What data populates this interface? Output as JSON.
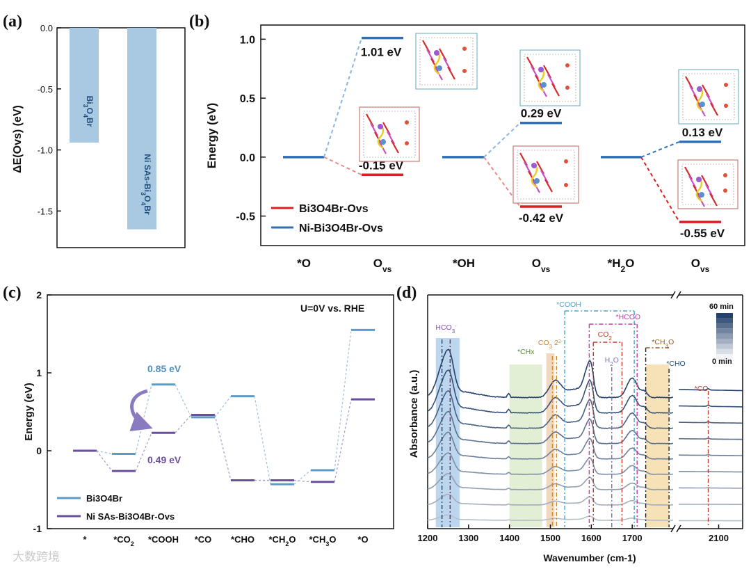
{
  "panels": {
    "a": "(a)",
    "b": "(b)",
    "c": "(c)",
    "d": "(d)"
  },
  "watermark": "大数跨境",
  "colors": {
    "bi": "#d92020",
    "ni": "#2e6fb8",
    "bar": "#a9c8e2",
    "c_bi": "#5b9cc6",
    "c_ni": "#6a4f9c",
    "ir_dark": "#24416b",
    "ir_light": "#b6bec8"
  },
  "chart_data": [
    {
      "id": "a",
      "type": "bar",
      "ylabel": "ΔE(Ovs) (eV)",
      "ylim": [
        -1.8,
        0.0
      ],
      "yticks": [
        0.0,
        -0.5,
        -1.0,
        -1.5
      ],
      "ytick_labels": [
        "0.0",
        "-0.5",
        "-1.0",
        "-1.5"
      ],
      "categories": [
        "Bi3O4Br",
        "Ni SAs-Bi3O4Br"
      ],
      "values": [
        -0.94,
        -1.65
      ]
    },
    {
      "id": "b",
      "type": "line",
      "title": "",
      "ylabel": "Energy (eV)",
      "ylim": [
        -0.75,
        1.12
      ],
      "yticks": [
        -0.5,
        0.0,
        0.5,
        1.0
      ],
      "ytick_labels": [
        "-0.5",
        "0.0",
        "0.5",
        "1.0"
      ],
      "x_labels": [
        "*O",
        "Ovs",
        "*OH",
        "Ovs",
        "*H2O",
        "Ovs"
      ],
      "series": [
        {
          "name": "Bi3O4Br-Ovs",
          "steps": [
            {
              "from": 0.0,
              "to": -0.15,
              "label": "-0.15 eV"
            },
            {
              "from": 0.0,
              "to": -0.42,
              "label": "-0.42 eV"
            },
            {
              "from": 0.0,
              "to": -0.55,
              "label": "-0.55 eV"
            }
          ]
        },
        {
          "name": "Ni-Bi3O4Br-Ovs",
          "steps": [
            {
              "from": 0.0,
              "to": 1.01,
              "label": "1.01 eV"
            },
            {
              "from": 0.0,
              "to": 0.29,
              "label": "0.29 eV"
            },
            {
              "from": 0.0,
              "to": 0.13,
              "label": "0.13 eV"
            }
          ]
        }
      ],
      "legend": [
        "Bi3O4Br-Ovs",
        "Ni-Bi3O4Br-Ovs"
      ]
    },
    {
      "id": "c",
      "type": "line",
      "annotation": "U=0V vs. RHE",
      "ylabel": "Energy (eV)",
      "ylim": [
        -1.0,
        2.0
      ],
      "yticks": [
        -1,
        0,
        1,
        2
      ],
      "ytick_labels": [
        "-1",
        "0",
        "1",
        "2"
      ],
      "categories": [
        "*",
        "*CO2",
        "*COOH",
        "*CO",
        "*CHO",
        "*CH2O",
        "*CH3O",
        "*O"
      ],
      "series": [
        {
          "name": "Bi3O4Br",
          "values": [
            0.0,
            -0.04,
            0.85,
            0.43,
            0.7,
            -0.43,
            -0.25,
            1.55
          ]
        },
        {
          "name": "Ni SAs-Bi3O4Br-Ovs",
          "values": [
            0.0,
            -0.26,
            0.23,
            0.46,
            -0.38,
            -0.38,
            -0.4,
            0.66
          ]
        }
      ],
      "barrier_labels": [
        "0.85 eV",
        "0.49 eV"
      ],
      "legend": [
        "Bi3O4Br",
        "Ni SAs-Bi3O4Br-Ovs"
      ]
    },
    {
      "id": "d",
      "type": "line",
      "xlabel": "Wavenumber (cm-1)",
      "ylabel": "Absorbance (a.u.)",
      "xlim": [
        1200,
        1800
      ],
      "xticks": [
        1200,
        1300,
        1400,
        1500,
        1600,
        1700
      ],
      "xlim_break": [
        2000,
        2160
      ],
      "xticks_break": [
        2100
      ],
      "colorbar": {
        "max_label": "60 min",
        "min_label": "0 min",
        "levels": 9
      },
      "time_series_count": 9,
      "peaks": [
        {
          "label": "HCO3-",
          "positions": [
            1235,
            1255
          ]
        },
        {
          "label": "*CHx",
          "region": [
            1400,
            1480
          ]
        },
        {
          "label": "CO3 2-",
          "positions": [
            1505,
            1515
          ]
        },
        {
          "label": "*COOH",
          "region": [
            1535,
            1705
          ]
        },
        {
          "label": "*HCOO",
          "region": [
            1595,
            1712
          ]
        },
        {
          "label": "CO2-",
          "region": [
            1605,
            1675
          ]
        },
        {
          "label": "H2O",
          "positions": [
            1650
          ]
        },
        {
          "label": "*CH3O",
          "region": [
            1733,
            1785
          ]
        },
        {
          "label": "*CHO",
          "positions": [
            1790
          ]
        },
        {
          "label": "*CO",
          "positions": [
            2074
          ]
        }
      ]
    }
  ]
}
